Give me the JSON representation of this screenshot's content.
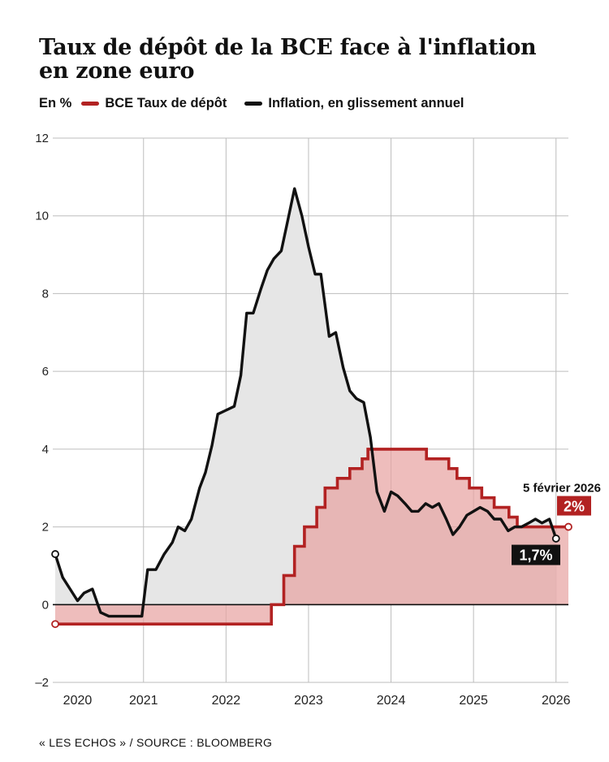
{
  "title_line1": "Taux de dépôt de la BCE face à l'inflation",
  "title_line2": "en zone euro",
  "unit_label": "En %",
  "source": "« LES ECHOS » / SOURCE : BLOOMBERG",
  "colors": {
    "deposit": "#b22222",
    "deposit_fill": "#e7a4a2",
    "inflation": "#111111",
    "inflation_fill": "#e6e6e6",
    "grid": "#bdbdbd"
  },
  "chart_data": {
    "type": "line",
    "title": "Taux de dépôt de la BCE face à l'inflation en zone euro",
    "ylabel": "En %",
    "xlim": [
      2019.9,
      2026.15
    ],
    "ylim": [
      -2,
      12
    ],
    "yticks": [
      12,
      10,
      8,
      6,
      4,
      2,
      0,
      -2
    ],
    "yticklabels": [
      "12",
      "10",
      "8",
      "6",
      "4",
      "2",
      "0",
      "–2"
    ],
    "xticks": [
      2021,
      2022,
      2023,
      2024,
      2025,
      2026
    ],
    "xticklabels": [
      {
        "label": "2020",
        "x": 2020.2
      },
      {
        "label": "2021",
        "x": 2021.0
      },
      {
        "label": "2022",
        "x": 2022.0
      },
      {
        "label": "2023",
        "x": 2023.0
      },
      {
        "label": "2024",
        "x": 2024.0
      },
      {
        "label": "2025",
        "x": 2025.0
      },
      {
        "label": "2026",
        "x": 2026.0
      }
    ],
    "series": [
      {
        "name": "BCE Taux de dépôt",
        "color": "#b22222",
        "step": true,
        "points": [
          [
            2019.93,
            -0.5
          ],
          [
            2022.55,
            -0.5
          ],
          [
            2022.55,
            0.0
          ],
          [
            2022.7,
            0.0
          ],
          [
            2022.7,
            0.75
          ],
          [
            2022.83,
            0.75
          ],
          [
            2022.83,
            1.5
          ],
          [
            2022.95,
            1.5
          ],
          [
            2022.95,
            2.0
          ],
          [
            2023.1,
            2.0
          ],
          [
            2023.1,
            2.5
          ],
          [
            2023.2,
            2.5
          ],
          [
            2023.2,
            3.0
          ],
          [
            2023.35,
            3.0
          ],
          [
            2023.35,
            3.25
          ],
          [
            2023.5,
            3.25
          ],
          [
            2023.5,
            3.5
          ],
          [
            2023.65,
            3.5
          ],
          [
            2023.65,
            3.75
          ],
          [
            2023.72,
            3.75
          ],
          [
            2023.72,
            4.0
          ],
          [
            2024.43,
            4.0
          ],
          [
            2024.43,
            3.75
          ],
          [
            2024.7,
            3.75
          ],
          [
            2024.7,
            3.5
          ],
          [
            2024.8,
            3.5
          ],
          [
            2024.8,
            3.25
          ],
          [
            2024.95,
            3.25
          ],
          [
            2024.95,
            3.0
          ],
          [
            2025.1,
            3.0
          ],
          [
            2025.1,
            2.75
          ],
          [
            2025.25,
            2.75
          ],
          [
            2025.25,
            2.5
          ],
          [
            2025.43,
            2.5
          ],
          [
            2025.43,
            2.25
          ],
          [
            2025.53,
            2.25
          ],
          [
            2025.53,
            2.0
          ],
          [
            2026.15,
            2.0
          ]
        ]
      },
      {
        "name": "Inflation, en glissement annuel",
        "color": "#111111",
        "points": [
          [
            2019.93,
            1.3
          ],
          [
            2020.02,
            0.7
          ],
          [
            2020.2,
            0.1
          ],
          [
            2020.28,
            0.3
          ],
          [
            2020.38,
            0.4
          ],
          [
            2020.48,
            -0.2
          ],
          [
            2020.58,
            -0.3
          ],
          [
            2020.8,
            -0.3
          ],
          [
            2020.98,
            -0.3
          ],
          [
            2021.05,
            0.9
          ],
          [
            2021.15,
            0.9
          ],
          [
            2021.25,
            1.3
          ],
          [
            2021.35,
            1.6
          ],
          [
            2021.42,
            2.0
          ],
          [
            2021.5,
            1.9
          ],
          [
            2021.58,
            2.2
          ],
          [
            2021.68,
            3.0
          ],
          [
            2021.75,
            3.4
          ],
          [
            2021.83,
            4.1
          ],
          [
            2021.9,
            4.9
          ],
          [
            2022.0,
            5.0
          ],
          [
            2022.1,
            5.1
          ],
          [
            2022.18,
            5.9
          ],
          [
            2022.25,
            7.5
          ],
          [
            2022.33,
            7.5
          ],
          [
            2022.42,
            8.1
          ],
          [
            2022.5,
            8.6
          ],
          [
            2022.58,
            8.9
          ],
          [
            2022.67,
            9.1
          ],
          [
            2022.75,
            9.9
          ],
          [
            2022.83,
            10.7
          ],
          [
            2022.92,
            10.0
          ],
          [
            2023.0,
            9.2
          ],
          [
            2023.08,
            8.5
          ],
          [
            2023.15,
            8.5
          ],
          [
            2023.25,
            6.9
          ],
          [
            2023.33,
            7.0
          ],
          [
            2023.42,
            6.1
          ],
          [
            2023.5,
            5.5
          ],
          [
            2023.58,
            5.3
          ],
          [
            2023.67,
            5.2
          ],
          [
            2023.75,
            4.3
          ],
          [
            2023.83,
            2.9
          ],
          [
            2023.92,
            2.4
          ],
          [
            2024.0,
            2.9
          ],
          [
            2024.08,
            2.8
          ],
          [
            2024.17,
            2.6
          ],
          [
            2024.25,
            2.4
          ],
          [
            2024.33,
            2.4
          ],
          [
            2024.42,
            2.6
          ],
          [
            2024.5,
            2.5
          ],
          [
            2024.58,
            2.6
          ],
          [
            2024.67,
            2.2
          ],
          [
            2024.75,
            1.8
          ],
          [
            2024.83,
            2.0
          ],
          [
            2024.92,
            2.3
          ],
          [
            2025.0,
            2.4
          ],
          [
            2025.08,
            2.5
          ],
          [
            2025.17,
            2.4
          ],
          [
            2025.25,
            2.2
          ],
          [
            2025.33,
            2.2
          ],
          [
            2025.42,
            1.9
          ],
          [
            2025.5,
            2.0
          ],
          [
            2025.58,
            2.0
          ],
          [
            2025.67,
            2.1
          ],
          [
            2025.75,
            2.2
          ],
          [
            2025.83,
            2.1
          ],
          [
            2025.92,
            2.2
          ],
          [
            2026.0,
            1.7
          ]
        ]
      }
    ],
    "annotations": {
      "date": "5 février 2026",
      "deposit_value": "2%",
      "inflation_value": "1,7%",
      "deposit_point": [
        2026.15,
        2.0
      ],
      "inflation_point": [
        2026.0,
        1.7
      ]
    }
  }
}
